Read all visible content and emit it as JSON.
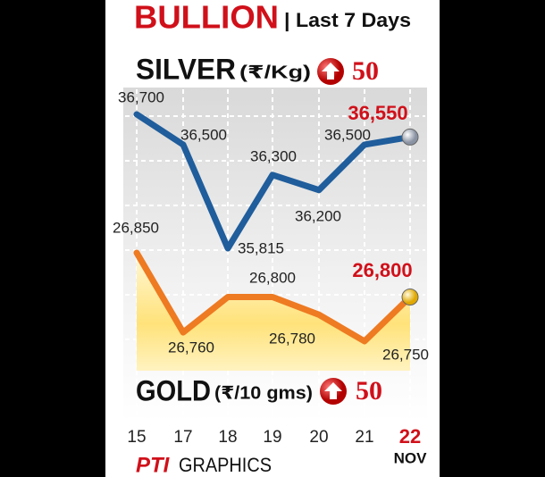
{
  "chart_data": {
    "type": "line",
    "title": "BULLION",
    "subtitle": "| Last 7 Days",
    "categories": [
      "15",
      "17",
      "18",
      "19",
      "20",
      "21",
      "22"
    ],
    "month_label": "NOV",
    "series": [
      {
        "name": "SILVER",
        "unit": "(₹/Kg)",
        "change": 50,
        "color": "#1f5d9c",
        "values": [
          36700,
          36500,
          35815,
          36300,
          36200,
          36500,
          36550
        ],
        "value_labels": [
          "36,700",
          "36,500",
          "35,815",
          "36,300",
          "36,200",
          "36,500",
          "36,550"
        ]
      },
      {
        "name": "GOLD",
        "unit": "(₹/10 gms)",
        "change": 50,
        "color": "#ee7a22",
        "values": [
          26850,
          26760,
          26800,
          26800,
          26780,
          26750,
          26800
        ],
        "value_labels": [
          "26,850",
          "26,760",
          null,
          "26,800",
          "26,780",
          "26,750",
          "26,800"
        ]
      }
    ],
    "source": "PTI",
    "source_suffix": "GRAPHICS"
  }
}
